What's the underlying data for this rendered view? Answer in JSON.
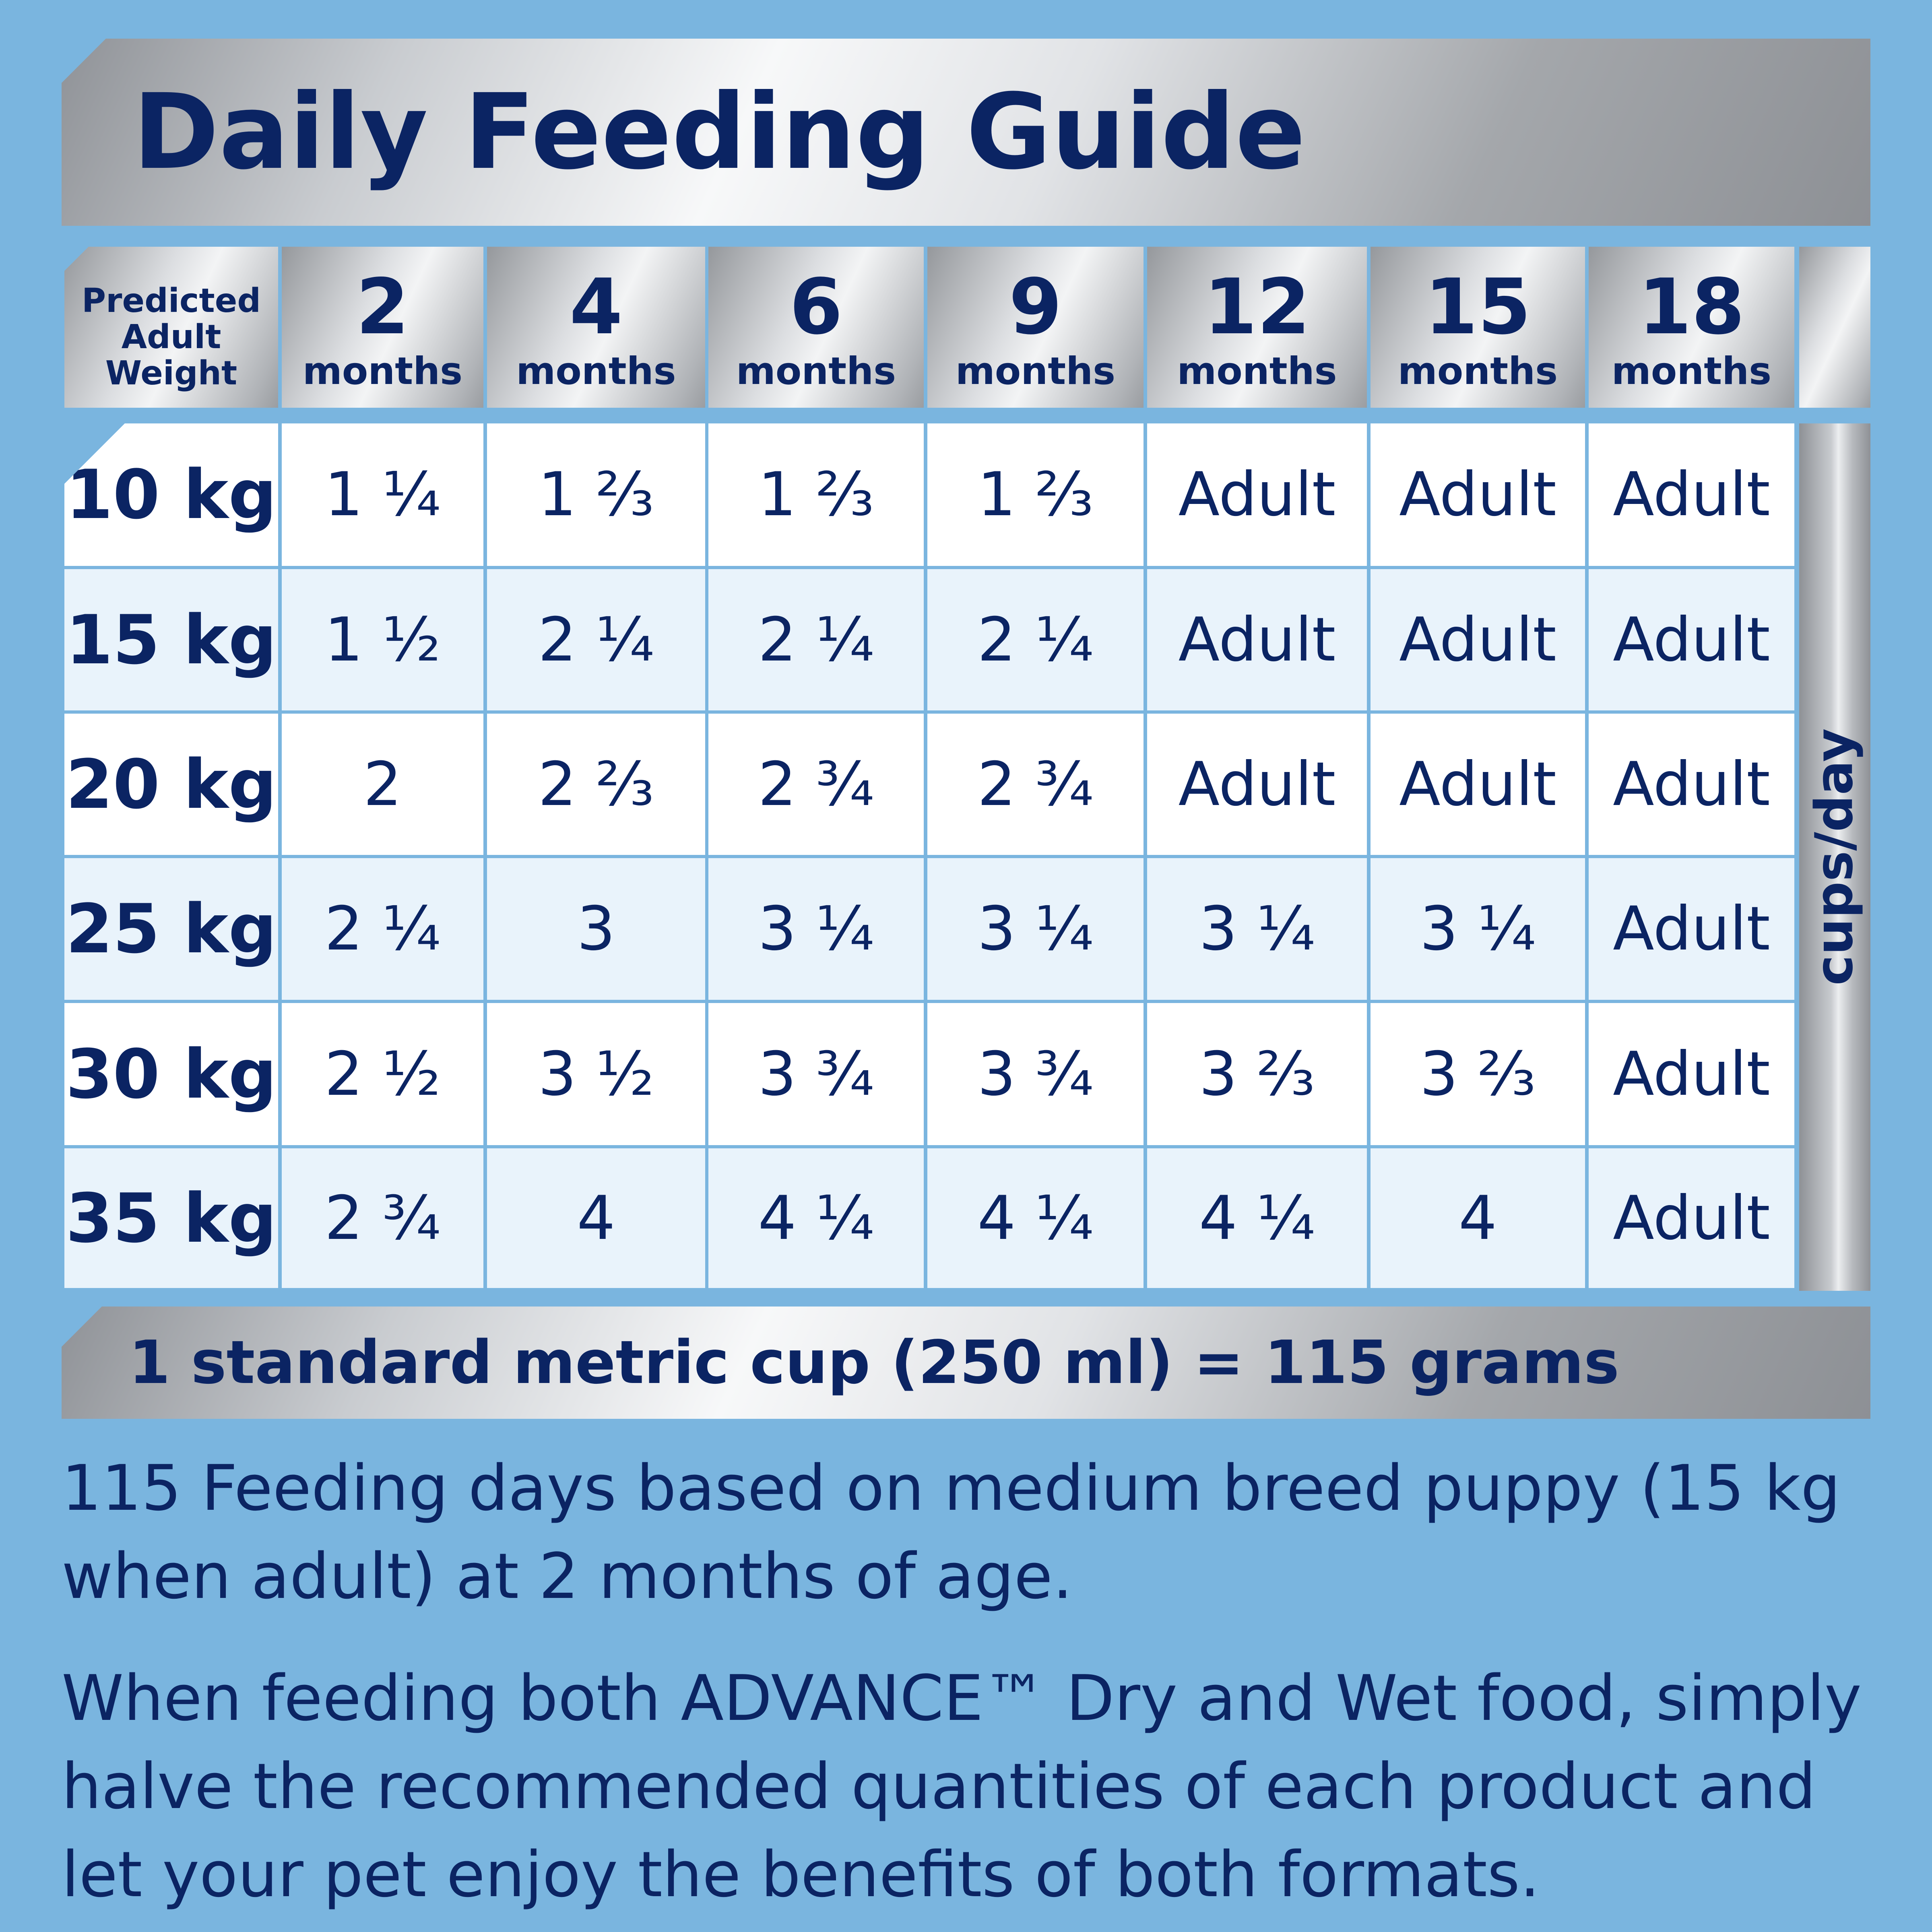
{
  "title": "Daily Feeding Guide",
  "table": {
    "corner_label": "Predicted Adult Weight",
    "columns": [
      {
        "num": "2",
        "unit": "months"
      },
      {
        "num": "4",
        "unit": "months"
      },
      {
        "num": "6",
        "unit": "months"
      },
      {
        "num": "9",
        "unit": "months"
      },
      {
        "num": "12",
        "unit": "months"
      },
      {
        "num": "15",
        "unit": "months"
      },
      {
        "num": "18",
        "unit": "months"
      }
    ],
    "rows": [
      {
        "weight": "10 kg",
        "values": [
          "1 ¼",
          "1 ⅔",
          "1 ⅔",
          "1 ⅔",
          "Adult",
          "Adult",
          "Adult"
        ]
      },
      {
        "weight": "15 kg",
        "values": [
          "1 ½",
          "2 ¼",
          "2 ¼",
          "2 ¼",
          "Adult",
          "Adult",
          "Adult"
        ]
      },
      {
        "weight": "20 kg",
        "values": [
          "2",
          "2 ⅔",
          "2 ¾",
          "2 ¾",
          "Adult",
          "Adult",
          "Adult"
        ]
      },
      {
        "weight": "25 kg",
        "values": [
          "2 ¼",
          "3",
          "3 ¼",
          "3 ¼",
          "3 ¼",
          "3 ¼",
          "Adult"
        ]
      },
      {
        "weight": "30 kg",
        "values": [
          "2 ½",
          "3 ½",
          "3 ¾",
          "3 ¾",
          "3 ⅔",
          "3 ⅔",
          "Adult"
        ]
      },
      {
        "weight": "35 kg",
        "values": [
          "2 ¾",
          "4",
          "4 ¼",
          "4 ¼",
          "4 ¼",
          "4",
          "Adult"
        ]
      }
    ],
    "unit_label": "cups/day"
  },
  "conversion": "1 standard metric cup (250 ml) = 115 grams",
  "notes": [
    "115 Feeding days based on medium breed puppy (15 kg when adult) at 2 months of age.",
    "When feeding both ADVANCE™ Dry and Wet food, simply halve the recommended quantities of each product and let your pet enjoy the benefits of both formats."
  ],
  "colors": {
    "background": "#7ab5df",
    "text": "#0b2463",
    "cell_light": "#ffffff",
    "cell_tint": "#e9f3fb"
  }
}
